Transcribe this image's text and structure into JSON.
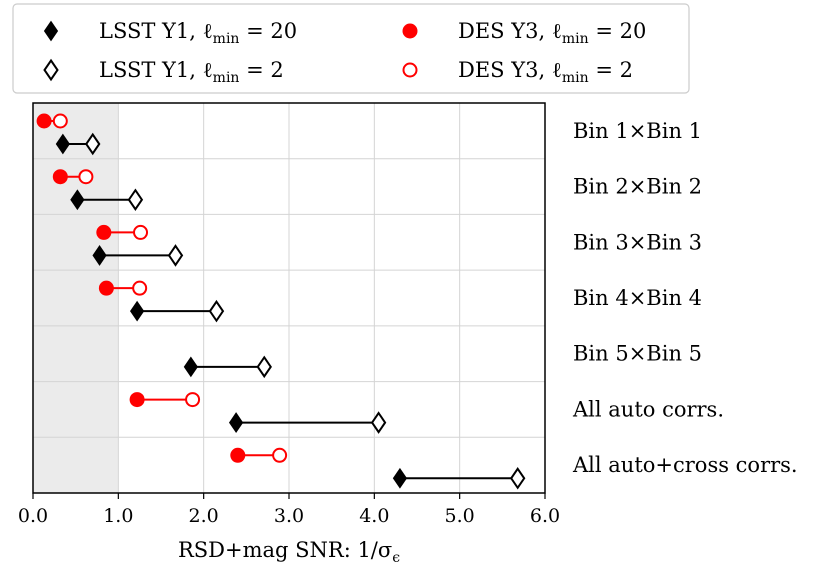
{
  "chart_data": {
    "type": "dumbbell",
    "xlabel": "RSD+mag SNR: 1/σ",
    "xlabel_subscript": "ϵ",
    "xlim": [
      0.0,
      6.0
    ],
    "xticks": [
      "0.0",
      "1.0",
      "2.0",
      "3.0",
      "4.0",
      "5.0",
      "6.0"
    ],
    "xtick_values": [
      0,
      1,
      2,
      3,
      4,
      5,
      6
    ],
    "shaded_region": [
      0.0,
      1.0
    ],
    "grid": true,
    "legend_position": "top",
    "rows": [
      {
        "label": "Bin 1×Bin 1",
        "des_lmin20": 0.13,
        "des_lmin2": 0.32,
        "lsst_lmin20": 0.35,
        "lsst_lmin2": 0.7
      },
      {
        "label": "Bin 2×Bin 2",
        "des_lmin20": 0.32,
        "des_lmin2": 0.62,
        "lsst_lmin20": 0.52,
        "lsst_lmin2": 1.2
      },
      {
        "label": "Bin 3×Bin 3",
        "des_lmin20": 0.83,
        "des_lmin2": 1.26,
        "lsst_lmin20": 0.78,
        "lsst_lmin2": 1.67
      },
      {
        "label": "Bin 4×Bin 4",
        "des_lmin20": 0.86,
        "des_lmin2": 1.25,
        "lsst_lmin20": 1.22,
        "lsst_lmin2": 2.15
      },
      {
        "label": "Bin 5×Bin 5",
        "des_lmin20": null,
        "des_lmin2": null,
        "lsst_lmin20": 1.85,
        "lsst_lmin2": 2.71
      },
      {
        "label": "All auto corrs.",
        "des_lmin20": 1.22,
        "des_lmin2": 1.87,
        "lsst_lmin20": 2.38,
        "lsst_lmin2": 4.05
      },
      {
        "label": "All auto+cross corrs.",
        "des_lmin20": 2.4,
        "des_lmin2": 2.89,
        "lsst_lmin20": 4.3,
        "lsst_lmin2": 5.68
      }
    ],
    "series": [
      {
        "name": "LSST Y1, ℓmin = 20",
        "key": "lsst_lmin20",
        "marker": "filled-diamond",
        "color": "#000000",
        "label_main": "LSST Y1, ℓ",
        "label_sub": "min",
        "label_tail": " = 20"
      },
      {
        "name": "LSST Y1, ℓmin = 2",
        "key": "lsst_lmin2",
        "marker": "open-diamond",
        "color": "#000000",
        "label_main": "LSST Y1, ℓ",
        "label_sub": "min",
        "label_tail": " = 2"
      },
      {
        "name": "DES Y3, ℓmin = 20",
        "key": "des_lmin20",
        "marker": "filled-circle",
        "color": "#ff0000",
        "label_main": "DES Y3, ℓ",
        "label_sub": "min",
        "label_tail": " = 20"
      },
      {
        "name": "DES Y3, ℓmin = 2",
        "key": "des_lmin2",
        "marker": "open-circle",
        "color": "#ff0000",
        "label_main": "DES Y3, ℓ",
        "label_sub": "min",
        "label_tail": " = 2"
      }
    ]
  }
}
